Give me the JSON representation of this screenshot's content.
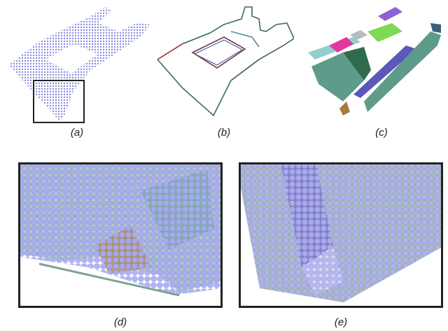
{
  "figure": {
    "panels": [
      {
        "id": "a",
        "caption": "(a)",
        "content": "point-cloud-overview"
      },
      {
        "id": "b",
        "caption": "(b)",
        "content": "boundary-lines"
      },
      {
        "id": "c",
        "caption": "(c)",
        "content": "segmented-planes"
      },
      {
        "id": "d",
        "caption": "(d)",
        "content": "zoomed-points-corner"
      },
      {
        "id": "e",
        "caption": "(e)",
        "content": "zoomed-points-ramp"
      }
    ],
    "colors": {
      "point": "#a7a8f2",
      "point_edge": "#7a7ad8",
      "plane_teal": "#5f9b8a",
      "plane_green": "#7ed957",
      "plane_magenta": "#e0389b",
      "plane_purple": "#8a63d2",
      "plane_blue": "#5a58b8",
      "plane_brown": "#a67c3d",
      "frame": "#222222"
    }
  }
}
